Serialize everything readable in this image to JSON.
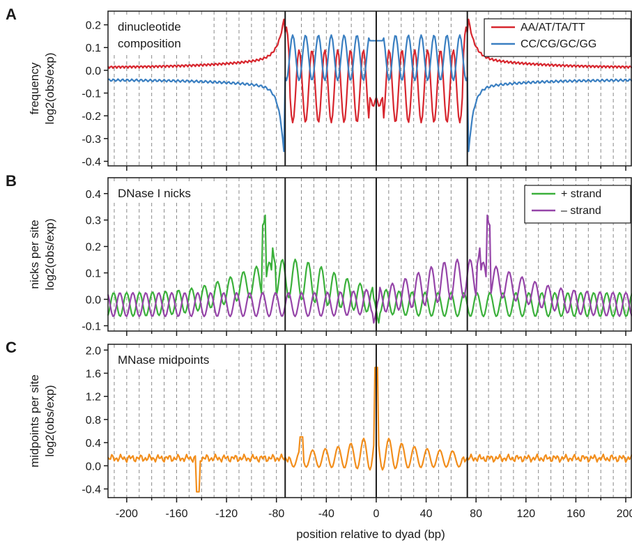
{
  "colors": {
    "aa": "#d7262e",
    "cc": "#3a7fc1",
    "plus": "#3bb03b",
    "minus": "#9545a8",
    "mnase": "#f28e1c",
    "axis": "#1a1a1a",
    "grid": "#888888"
  },
  "xaxis": {
    "label": "position relative to dyad (bp)",
    "ticks": [
      "-200",
      "-160",
      "-120",
      "-80",
      "-40",
      "0",
      "40",
      "80",
      "120",
      "160",
      "200"
    ]
  },
  "chart_data": [
    {
      "panel": "A",
      "type": "line",
      "annotation": [
        "dinucleotide",
        "composition"
      ],
      "ylabel": [
        "frequency",
        "log2(obs/exp)"
      ],
      "xlim": [
        -215,
        205
      ],
      "ylim": [
        -0.42,
        0.26
      ],
      "yticks": [
        "0.2",
        "0.1",
        "0.0",
        "-0.1",
        "-0.2",
        "-0.3",
        "-0.4"
      ],
      "ytick_values": [
        0.2,
        0.1,
        0.0,
        -0.1,
        -0.2,
        -0.3,
        -0.4
      ],
      "vlines": [
        -73,
        0,
        73
      ],
      "grid": "dashed vertical every 10 bp",
      "legend_position": "top-right",
      "series": [
        {
          "name": "AA/AT/TA/TT",
          "color_key": "aa",
          "model": "aa"
        },
        {
          "name": "CC/CG/GC/GG",
          "color_key": "cc",
          "model": "cc"
        }
      ]
    },
    {
      "panel": "B",
      "type": "line",
      "annotation": [
        "DNase I nicks"
      ],
      "ylabel": [
        "nicks per site",
        "log2(obs/exp)"
      ],
      "xlim": [
        -215,
        205
      ],
      "ylim": [
        -0.12,
        0.46
      ],
      "yticks": [
        "0.4",
        "0.3",
        "0.2",
        "0.1",
        "0.0",
        "-0.1"
      ],
      "ytick_values": [
        0.4,
        0.3,
        0.2,
        0.1,
        0.0,
        -0.1
      ],
      "vlines": [
        -73,
        0,
        73
      ],
      "grid": "dashed vertical every 10 bp",
      "legend_position": "top-right",
      "series": [
        {
          "name": "+ strand",
          "color_key": "plus",
          "model": "plus"
        },
        {
          "name": "– strand",
          "color_key": "minus",
          "model": "minus"
        }
      ]
    },
    {
      "panel": "C",
      "type": "line",
      "annotation": [
        "MNase midpoints"
      ],
      "ylabel": [
        "midpoints per site",
        "log2(obs/exp)"
      ],
      "xlim": [
        -215,
        205
      ],
      "ylim": [
        -0.55,
        2.1
      ],
      "yticks": [
        "2.0",
        "1.6",
        "1.2",
        "0.8",
        "0.4",
        "0.0",
        "-0.4"
      ],
      "ytick_values": [
        2.0,
        1.6,
        1.2,
        0.8,
        0.4,
        0.0,
        -0.4
      ],
      "vlines": [
        -73,
        0,
        73
      ],
      "grid": "dashed vertical every 10 bp",
      "legend_position": "none",
      "series": [
        {
          "name": "",
          "color_key": "mnase",
          "model": "mnase"
        }
      ]
    }
  ]
}
